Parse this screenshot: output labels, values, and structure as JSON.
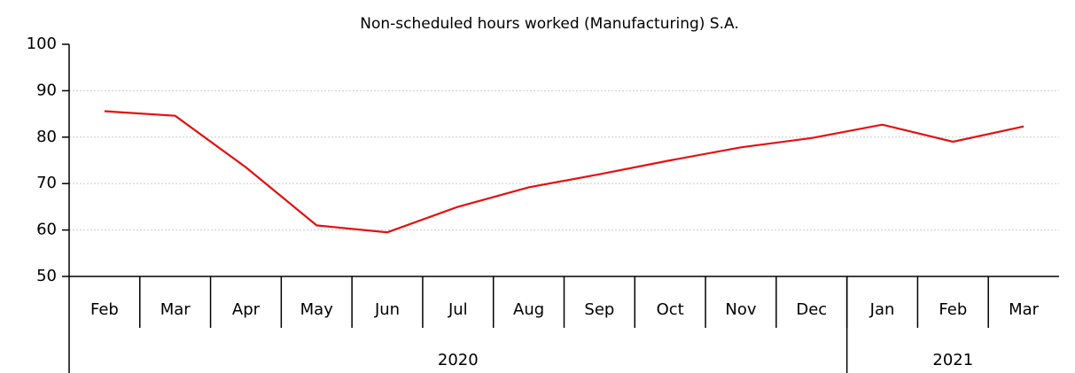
{
  "chart_data": {
    "type": "line",
    "title": "Non-scheduled hours worked (Manufacturing)   S.A.",
    "categories": [
      "Feb",
      "Mar",
      "Apr",
      "May",
      "Jun",
      "Jul",
      "Aug",
      "Sep",
      "Oct",
      "Nov",
      "Dec",
      "Jan",
      "Feb",
      "Mar"
    ],
    "groups": [
      {
        "label": "2020",
        "span": 11
      },
      {
        "label": "2021",
        "span": 3
      }
    ],
    "values": [
      85.6,
      84.6,
      73.5,
      61.0,
      59.5,
      65.0,
      69.2,
      72.0,
      75.0,
      77.8,
      79.8,
      82.7,
      79.0,
      82.3
    ],
    "color": "#e31010",
    "ylim": [
      50,
      100
    ],
    "yticks": [
      50,
      60,
      70,
      80,
      90,
      100
    ],
    "grid": true
  }
}
